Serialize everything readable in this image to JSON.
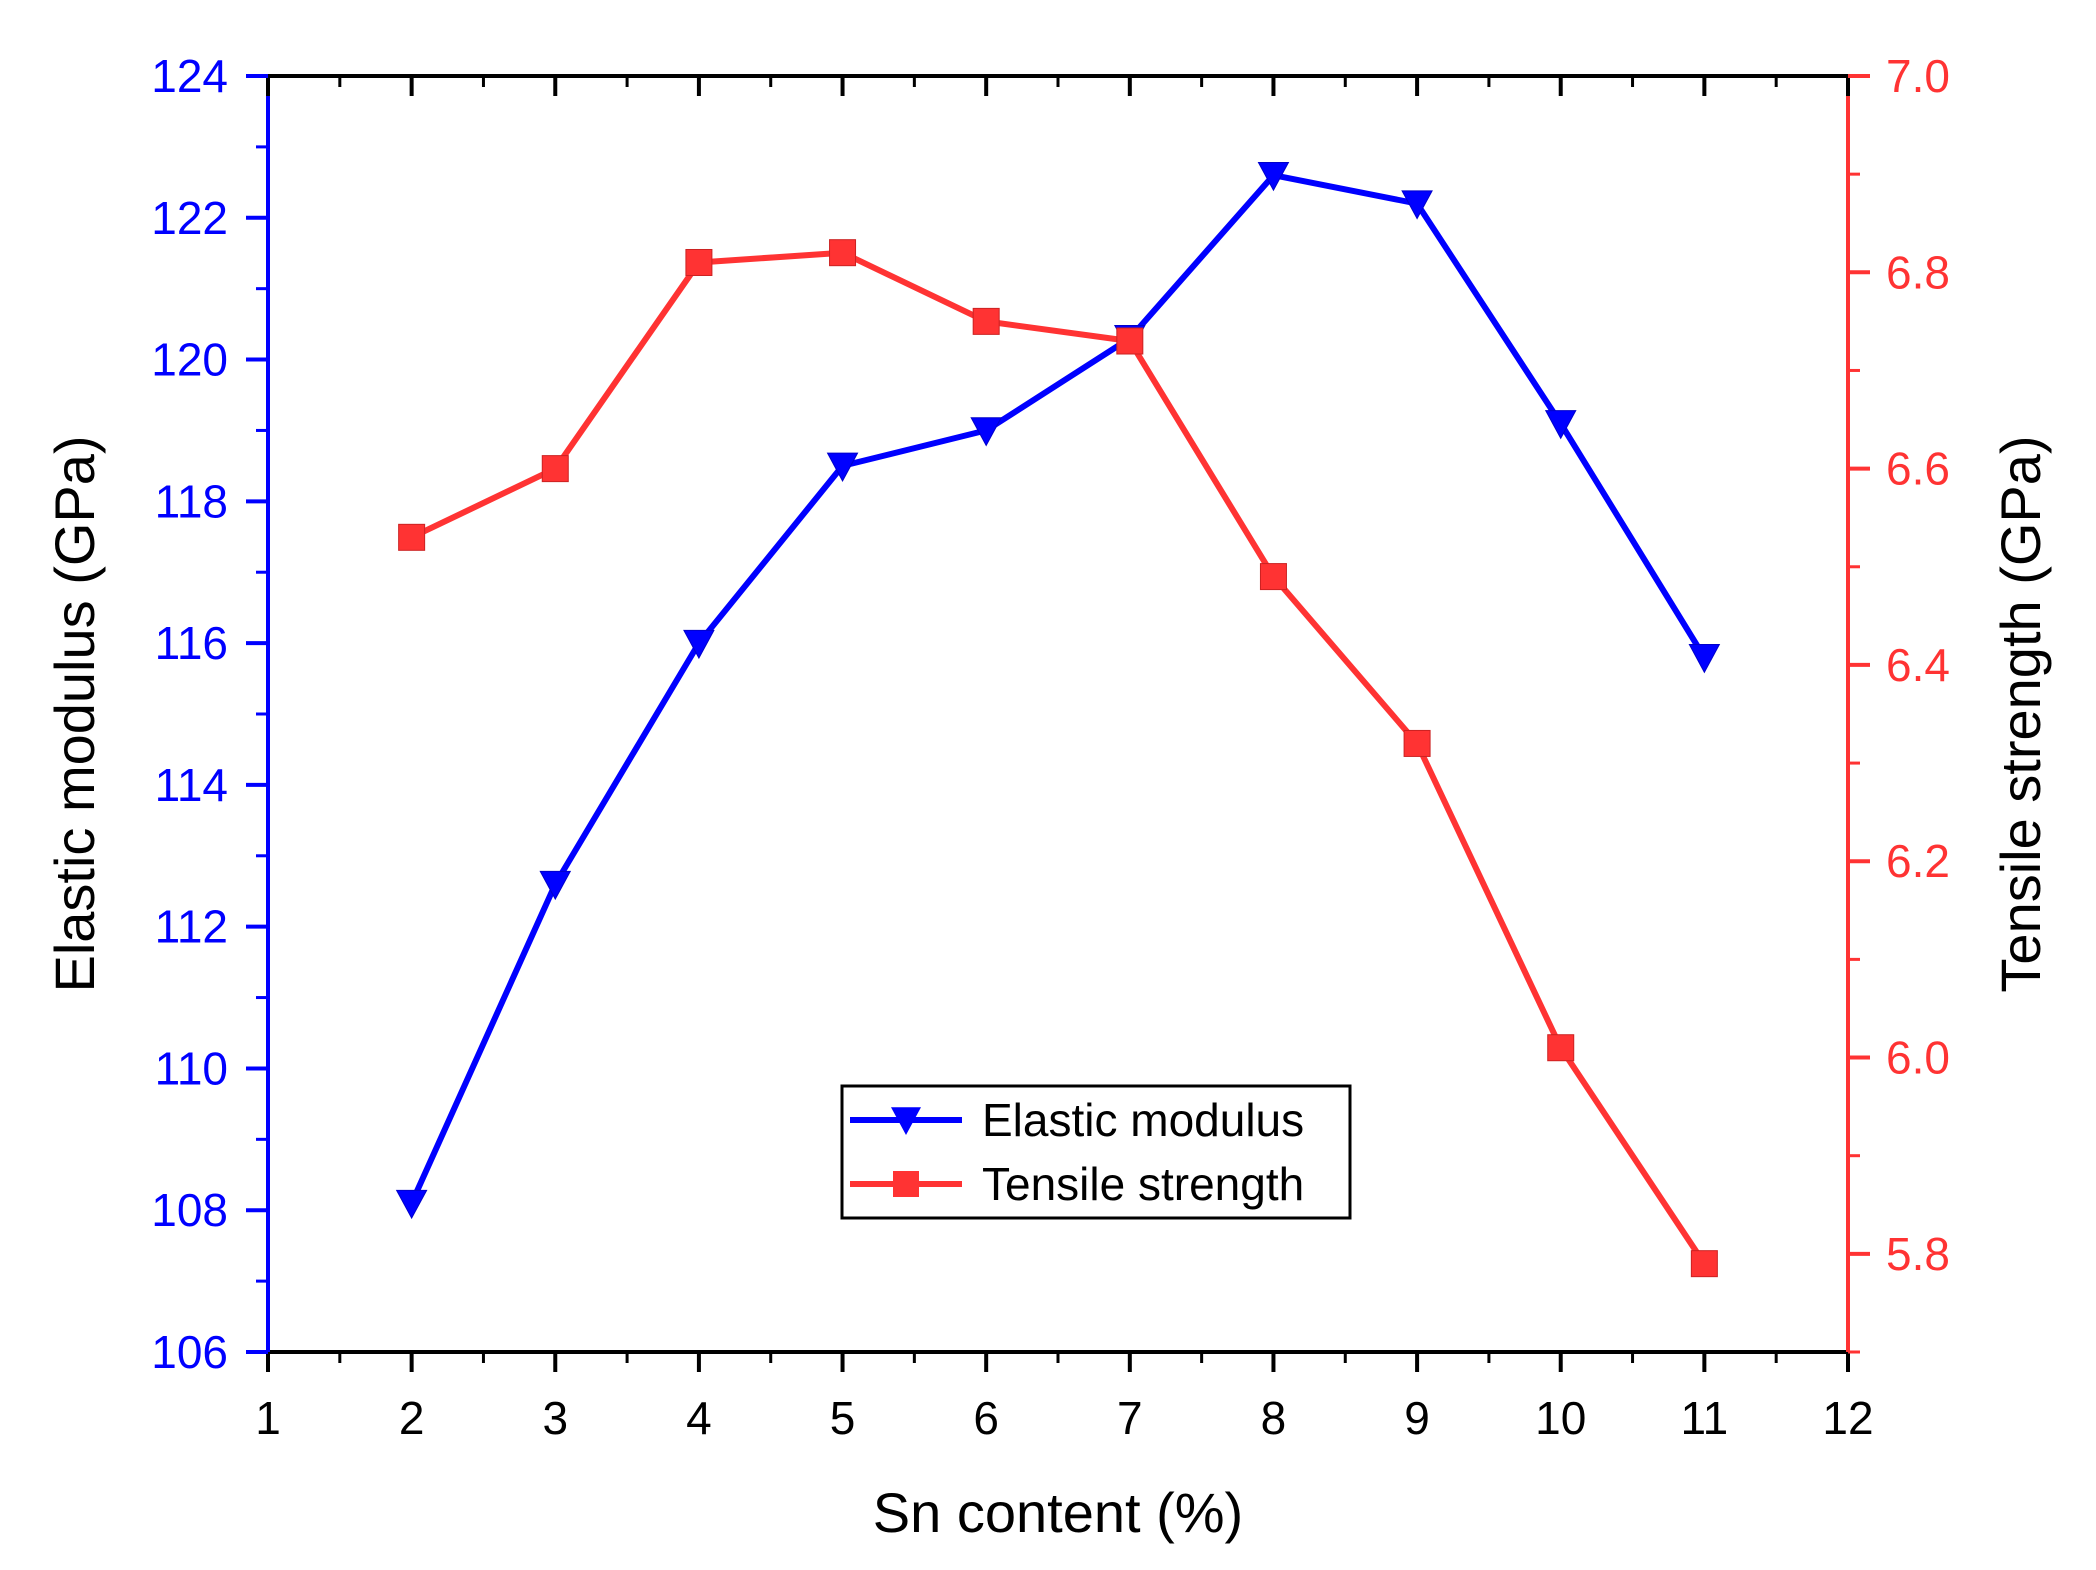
{
  "chart_data": {
    "type": "line",
    "x": [
      2,
      3,
      4,
      5,
      6,
      7,
      8,
      9,
      10,
      11
    ],
    "xlabel": "Sn content (%)",
    "xlim": [
      1,
      12
    ],
    "xticks": [
      "1",
      "2",
      "3",
      "4",
      "5",
      "6",
      "7",
      "8",
      "9",
      "10",
      "11",
      "12"
    ],
    "left_axis": {
      "label": "Elastic modulus (GPa)",
      "ylim": [
        106,
        124
      ],
      "ticks": [
        "106",
        "108",
        "110",
        "112",
        "114",
        "116",
        "118",
        "120",
        "122",
        "124"
      ],
      "color": "#0000ff"
    },
    "right_axis": {
      "label": "Tensile strength (GPa)",
      "ylim": [
        5.7,
        7.0
      ],
      "ticks": [
        "5.8",
        "6.0",
        "6.2",
        "6.4",
        "6.6",
        "6.8",
        "7.0"
      ],
      "color": "#ff3333"
    },
    "series": [
      {
        "name": "Elastic modulus",
        "axis": "left",
        "marker": "triangle-down",
        "color": "#0000ff",
        "values": [
          108.1,
          112.6,
          116.0,
          118.5,
          119.0,
          120.3,
          122.6,
          122.2,
          119.1,
          115.8
        ]
      },
      {
        "name": "Tensile strength",
        "axis": "right",
        "marker": "square",
        "color": "#ff3333",
        "values": [
          6.53,
          6.6,
          6.81,
          6.82,
          6.75,
          6.73,
          6.49,
          6.32,
          6.01,
          5.79
        ]
      }
    ],
    "legend": {
      "position": "bottom-center",
      "items": [
        "Elastic modulus",
        "Tensile strength"
      ]
    }
  }
}
